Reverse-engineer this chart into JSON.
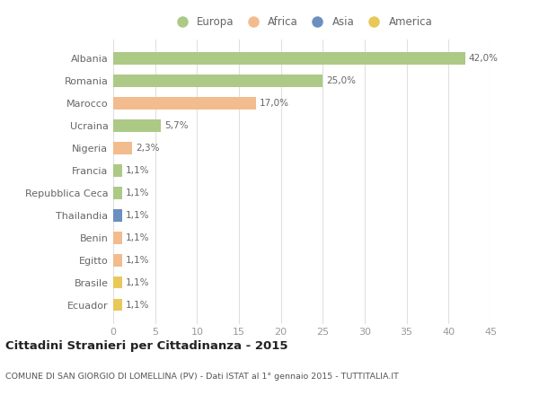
{
  "countries": [
    "Albania",
    "Romania",
    "Marocco",
    "Ucraina",
    "Nigeria",
    "Francia",
    "Repubblica Ceca",
    "Thailandia",
    "Benin",
    "Egitto",
    "Brasile",
    "Ecuador"
  ],
  "values": [
    42.0,
    25.0,
    17.0,
    5.7,
    2.3,
    1.1,
    1.1,
    1.1,
    1.1,
    1.1,
    1.1,
    1.1
  ],
  "labels": [
    "42,0%",
    "25,0%",
    "17,0%",
    "5,7%",
    "2,3%",
    "1,1%",
    "1,1%",
    "1,1%",
    "1,1%",
    "1,1%",
    "1,1%",
    "1,1%"
  ],
  "colors": [
    "#adc986",
    "#adc986",
    "#f2bc8e",
    "#adc986",
    "#f2bc8e",
    "#adc986",
    "#adc986",
    "#6a8fc0",
    "#f2bc8e",
    "#f2bc8e",
    "#e8c858",
    "#e8c858"
  ],
  "legend_labels": [
    "Europa",
    "Africa",
    "Asia",
    "America"
  ],
  "legend_colors": [
    "#adc986",
    "#f2bc8e",
    "#6a8fc0",
    "#e8c858"
  ],
  "xlim": [
    0,
    45
  ],
  "xticks": [
    0,
    5,
    10,
    15,
    20,
    25,
    30,
    35,
    40,
    45
  ],
  "title": "Cittadini Stranieri per Cittadinanza - 2015",
  "subtitle": "COMUNE DI SAN GIORGIO DI LOMELLINA (PV) - Dati ISTAT al 1° gennaio 2015 - TUTTITALIA.IT",
  "bg_color": "#ffffff",
  "plot_bg_color": "#ffffff",
  "grid_color": "#e0e0e0",
  "bar_height": 0.55,
  "label_color": "#666666",
  "tick_color": "#999999",
  "title_color": "#222222",
  "subtitle_color": "#555555"
}
